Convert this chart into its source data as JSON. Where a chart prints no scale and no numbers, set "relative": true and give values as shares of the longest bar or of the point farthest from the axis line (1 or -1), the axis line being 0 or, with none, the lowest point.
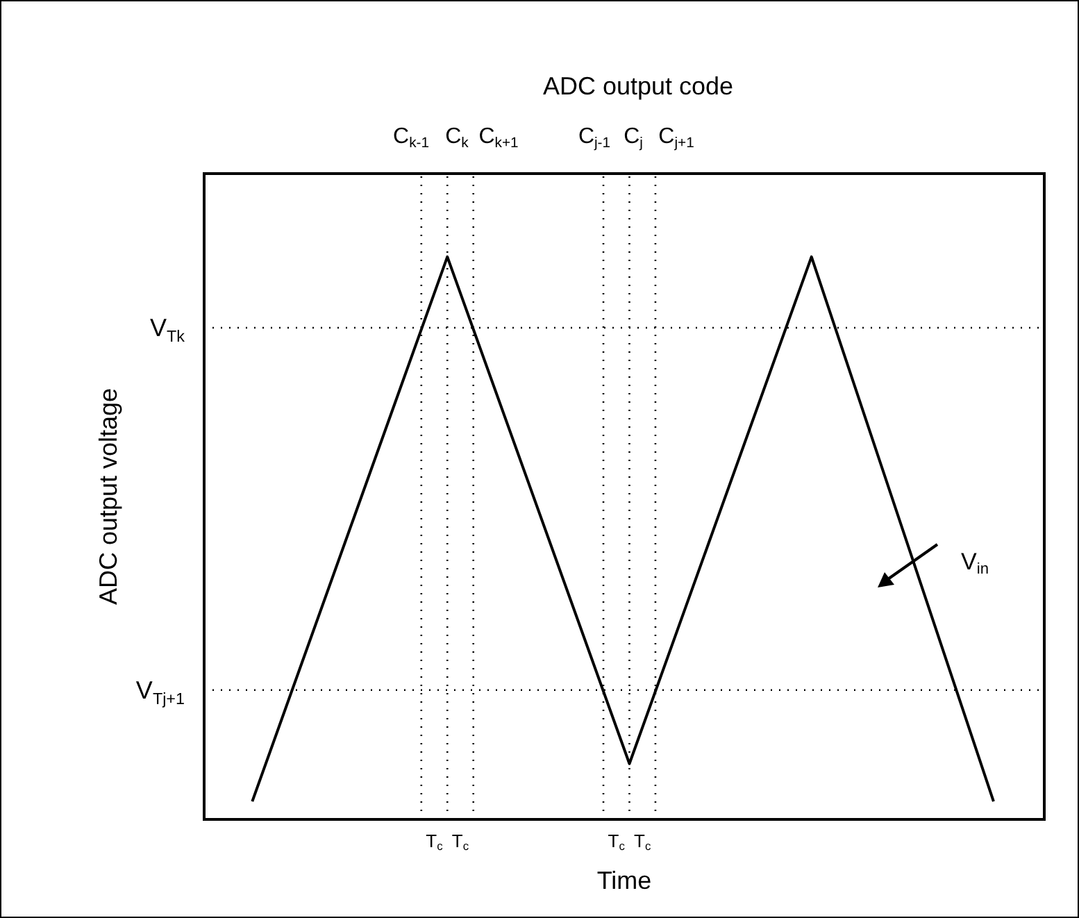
{
  "chart_data": {
    "type": "line",
    "title": "ADC output code",
    "xlabel": "Time",
    "ylabel": "ADC output voltage",
    "relative": true,
    "tick_labels": "x",
    "legend": false,
    "grid": false,
    "marker": "none",
    "line_style": "solid",
    "categories": [
      null,
      null,
      null,
      null,
      null,
      null,
      null,
      null,
      null,
      null,
      null,
      null,
      null,
      null,
      "T$_{c}$",
      null,
      "T$_{c}$",
      null,
      null,
      null,
      null,
      null,
      null,
      null,
      null,
      null,
      null,
      null,
      "T$_{c}$",
      null,
      "T$_{c}$",
      null,
      null,
      null,
      null,
      null,
      null,
      null,
      null,
      null,
      null,
      null,
      null,
      null,
      null,
      null,
      null,
      null,
      null,
      null,
      null,
      null,
      null,
      null,
      null,
      null,
      null,
      null
    ],
    "series": [
      {
        "color": "#000000",
        "values": [
          0.032,
          null,
          null,
          null,
          null,
          null,
          null,
          null,
          null,
          null,
          null,
          null,
          null,
          null,
          null,
          1,
          null,
          null,
          null,
          null,
          null,
          null,
          null,
          null,
          null,
          null,
          null,
          null,
          null,
          0.099,
          null,
          null,
          null,
          null,
          null,
          null,
          null,
          null,
          null,
          null,
          null,
          null,
          null,
          1,
          null,
          null,
          null,
          null,
          null,
          null,
          null,
          null,
          null,
          null,
          null,
          null,
          null,
          0.032
        ]
      }
    ],
    "ref_lines": [
      {
        "axis": "y",
        "value": 0.874,
        "label": "V$_{Tk}$",
        "line_style": "dotted"
      },
      {
        "axis": "y",
        "value": 0.23,
        "label": "V$_{Tj+1}$",
        "line_style": "dotted"
      }
    ],
    "annotations": [
      "C$_{k-1}$",
      "C$_{k}$",
      "C$_{k+1}$",
      "C$_{j-1}$",
      "C$_{j}$",
      "C$_{j+1}$",
      "V$_{in}$"
    ]
  }
}
